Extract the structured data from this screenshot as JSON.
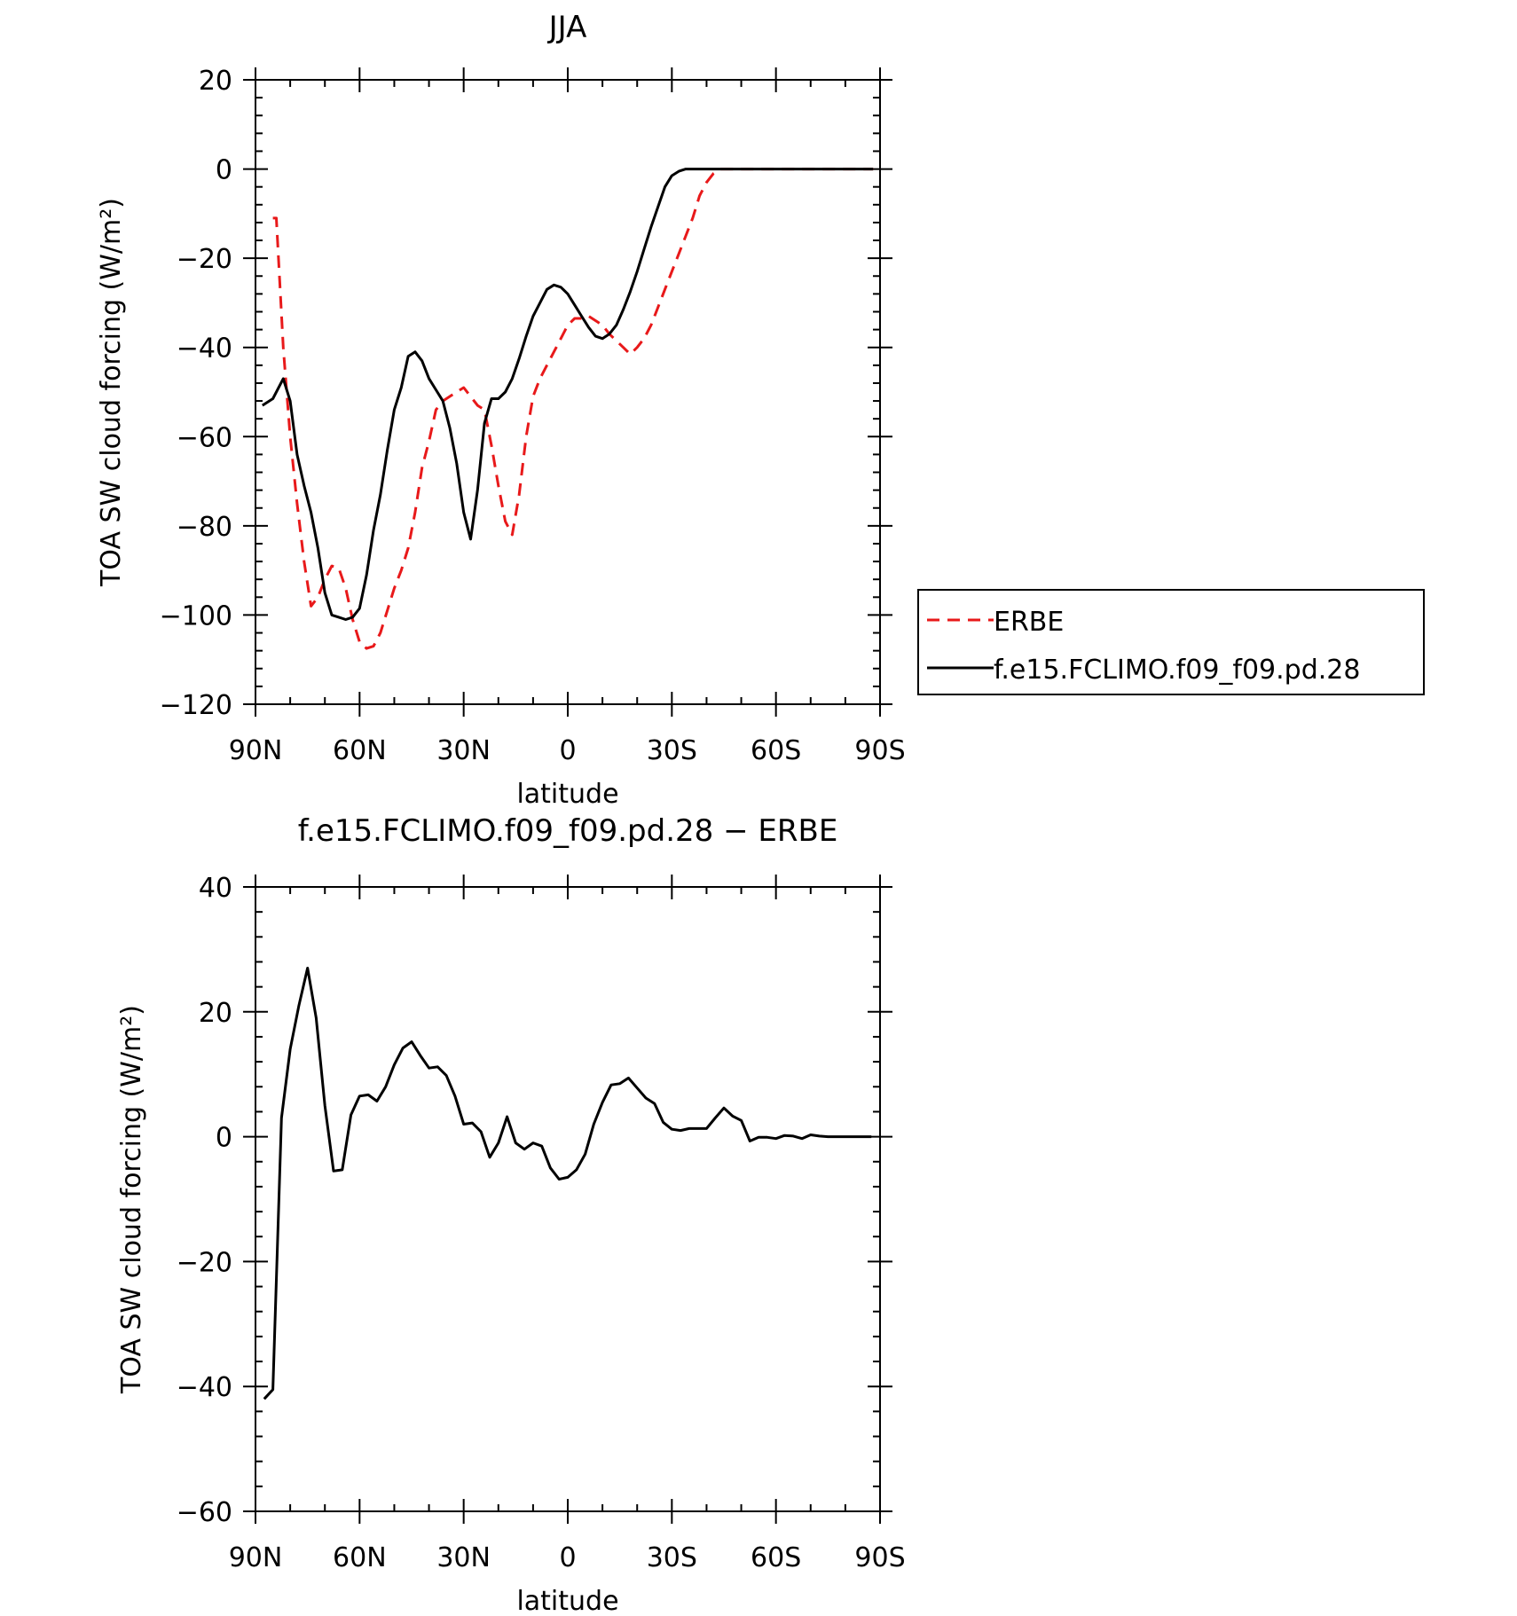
{
  "chart_data": [
    {
      "type": "line",
      "title": "JJA",
      "xlabel": "latitude",
      "ylabel": "TOA SW cloud forcing (W/m²)",
      "xlim": [
        90,
        -90
      ],
      "ylim": [
        -120,
        20
      ],
      "x_ticks": [
        {
          "value": 90,
          "label": "90N"
        },
        {
          "value": 60,
          "label": "60N"
        },
        {
          "value": 30,
          "label": "30N"
        },
        {
          "value": 0,
          "label": "0"
        },
        {
          "value": -30,
          "label": "30S"
        },
        {
          "value": -60,
          "label": "60S"
        },
        {
          "value": -90,
          "label": "90S"
        }
      ],
      "y_ticks": [
        20,
        0,
        -20,
        -40,
        -60,
        -80,
        -100,
        -120
      ],
      "y_tick_labels": [
        "20",
        "0",
        "−20",
        "−40",
        "−60",
        "−80",
        "−100",
        "−120"
      ],
      "legend_position": "right",
      "series": [
        {
          "name": "ERBE",
          "color": "#e8191a",
          "dash": true,
          "x": [
            85,
            84,
            82,
            80,
            78,
            76,
            74,
            72,
            70,
            68,
            66,
            64,
            62,
            60,
            58,
            56,
            54,
            52,
            50,
            48,
            46,
            44,
            42,
            40,
            38,
            36,
            34,
            32,
            30,
            28,
            26,
            24,
            22,
            20,
            18,
            16,
            14,
            12,
            10,
            8,
            6,
            4,
            2,
            0,
            -2,
            -4,
            -6,
            -8,
            -10,
            -12,
            -14,
            -16,
            -18,
            -20,
            -22,
            -24,
            -26,
            -28,
            -30,
            -32,
            -34,
            -36,
            -38,
            -40,
            -42,
            -44,
            -46,
            -48,
            -50,
            -52,
            -54,
            -56,
            -58,
            -60,
            -62,
            -64,
            -66,
            -68,
            -70,
            -72,
            -74,
            -76,
            -78,
            -80,
            -82,
            -84,
            -86,
            -88
          ],
          "y": [
            -11,
            -11,
            -40,
            -60,
            -75,
            -88,
            -98,
            -96,
            -92,
            -89,
            -89.5,
            -94,
            -101,
            -106,
            -107.5,
            -107,
            -104,
            -99,
            -94,
            -90,
            -85,
            -77,
            -67,
            -61,
            -54,
            -52,
            -51,
            -50,
            -49,
            -51,
            -53,
            -54,
            -62,
            -71,
            -79,
            -82,
            -73,
            -60,
            -51,
            -47,
            -44,
            -41,
            -38,
            -35,
            -33.5,
            -33.5,
            -33,
            -34,
            -35,
            -37,
            -38.5,
            -40,
            -41.5,
            -40,
            -38,
            -35,
            -31,
            -27,
            -23,
            -19,
            -15,
            -11,
            -6,
            -3,
            -1,
            0,
            0,
            0,
            0,
            0,
            0,
            0,
            0,
            0,
            0,
            0,
            0,
            0,
            0,
            0,
            0,
            0,
            0,
            0,
            0,
            0,
            0,
            0
          ]
        },
        {
          "name": "f.e15.FCLIMO.f09_f09.pd.28",
          "color": "#000000",
          "dash": false,
          "x": [
            88,
            85,
            82,
            80,
            78,
            76,
            74,
            72,
            70,
            68,
            66,
            64,
            62,
            60,
            58,
            56,
            54,
            52,
            50,
            48,
            46,
            44,
            42,
            40,
            38,
            36,
            34,
            32,
            30,
            28,
            26,
            24,
            22,
            20,
            18,
            16,
            14,
            12,
            10,
            8,
            6,
            4,
            2,
            0,
            -2,
            -4,
            -6,
            -8,
            -10,
            -12,
            -14,
            -16,
            -18,
            -20,
            -22,
            -24,
            -26,
            -28,
            -30,
            -32,
            -34,
            -36,
            -38,
            -40,
            -42,
            -44,
            -46,
            -48,
            -50,
            -52,
            -54,
            -56,
            -58,
            -60,
            -62,
            -64,
            -66,
            -68,
            -70,
            -72,
            -74,
            -76,
            -78,
            -80,
            -82,
            -84,
            -86,
            -88
          ],
          "y": [
            -53,
            -51.5,
            -47,
            -52,
            -64,
            -71,
            -77,
            -85,
            -95,
            -100,
            -100.5,
            -101,
            -100.5,
            -98.5,
            -91,
            -81,
            -73,
            -63,
            -54,
            -49,
            -42,
            -41,
            -43,
            -47,
            -49.5,
            -52,
            -58,
            -66,
            -77,
            -83,
            -72,
            -57,
            -51.5,
            -51.5,
            -50,
            -47,
            -42.5,
            -37.5,
            -33,
            -30,
            -27,
            -26,
            -26.5,
            -28,
            -30.5,
            -33,
            -35.5,
            -37.5,
            -38,
            -37,
            -35,
            -31.5,
            -27.5,
            -23,
            -18,
            -13,
            -8.5,
            -4,
            -1.5,
            -0.5,
            0,
            0,
            0,
            0,
            0,
            0,
            0,
            0,
            0,
            0,
            0,
            0,
            0,
            0,
            0,
            0,
            0,
            0,
            0,
            0,
            0,
            0,
            0,
            0,
            0,
            0,
            0,
            0
          ]
        }
      ]
    },
    {
      "type": "line",
      "title": "f.e15.FCLIMO.f09_f09.pd.28 − ERBE",
      "xlabel": "latitude",
      "ylabel": "TOA SW cloud forcing (W/m²)",
      "xlim": [
        90,
        -90
      ],
      "ylim": [
        -60,
        40
      ],
      "x_ticks": [
        {
          "value": 90,
          "label": "90N"
        },
        {
          "value": 60,
          "label": "60N"
        },
        {
          "value": 30,
          "label": "30N"
        },
        {
          "value": 0,
          "label": "0"
        },
        {
          "value": -30,
          "label": "30S"
        },
        {
          "value": -60,
          "label": "60S"
        },
        {
          "value": -90,
          "label": "90S"
        }
      ],
      "y_ticks": [
        40,
        20,
        0,
        -20,
        -40,
        -60
      ],
      "y_tick_labels": [
        "40",
        "20",
        "0",
        "−20",
        "−40",
        "−60"
      ],
      "series": [
        {
          "color": "#000000",
          "dash": false,
          "x": [
            87.5,
            85,
            82.5,
            80,
            77.5,
            75,
            72.5,
            70,
            67.5,
            65,
            62.5,
            60,
            57.5,
            55,
            52.5,
            50,
            47.5,
            45,
            42.5,
            40,
            37.5,
            35,
            32.5,
            30,
            27.5,
            25,
            22.5,
            20,
            17.5,
            15,
            12.5,
            10,
            7.5,
            5,
            2.5,
            0,
            -2.5,
            -5,
            -7.5,
            -10,
            -12.5,
            -15,
            -17.5,
            -20,
            -22.5,
            -25,
            -27.5,
            -30,
            -32.5,
            -35,
            -37.5,
            -40,
            -42.5,
            -45,
            -47.5,
            -50,
            -52.5,
            -55,
            -57.5,
            -60,
            -62.5,
            -65,
            -67.5,
            -70,
            -72.5,
            -75,
            -77.5,
            -80,
            -82.5,
            -85,
            -87.5
          ],
          "y": [
            -42,
            -40.5,
            3,
            14,
            21,
            27,
            19,
            5,
            -5.5,
            -5.3,
            3.5,
            6.5,
            6.7,
            5.7,
            8,
            11.5,
            14.2,
            15.2,
            13,
            11,
            11.2,
            9.8,
            6.5,
            2,
            2.2,
            0.8,
            -3.3,
            -1,
            3.2,
            -1,
            -2,
            -1,
            -1.5,
            -5,
            -6.8,
            -6.5,
            -5.3,
            -2.8,
            2,
            5.5,
            8.3,
            8.5,
            9.4,
            7.8,
            6.2,
            5.3,
            2.3,
            1.2,
            1,
            1.3,
            1.3,
            1.3,
            3,
            4.6,
            3.3,
            2.6,
            -0.7,
            -0.1,
            -0.1,
            -0.3,
            0.2,
            0.1,
            -0.3,
            0.3,
            0.1,
            0,
            0,
            0,
            0,
            0,
            0
          ]
        }
      ]
    }
  ]
}
